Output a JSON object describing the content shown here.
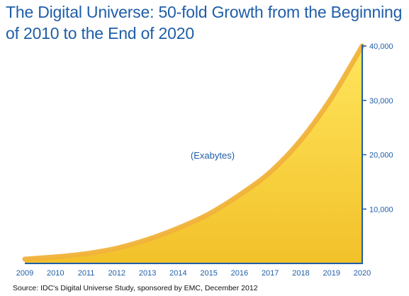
{
  "title": "The Digital Universe: 50-fold Growth from the Beginning of 2010 to the End of 2020",
  "source": "Source: IDC's Digital Universe Study, sponsored by EMC, December 2012",
  "chart_data": {
    "type": "area",
    "title": "The Digital Universe: 50-fold Growth from the Beginning of 2010 to the End of 2020",
    "xlabel": "",
    "ylabel": "",
    "annotation": "(Exabytes)",
    "x": [
      "2009",
      "2010",
      "2011",
      "2012",
      "2013",
      "2014",
      "2015",
      "2016",
      "2017",
      "2018",
      "2019",
      "2020"
    ],
    "values": [
      800,
      1200,
      1800,
      2800,
      4400,
      6500,
      9100,
      12600,
      16800,
      22700,
      30500,
      40000
    ],
    "ylim": [
      0,
      40000
    ],
    "yticks": [
      10000,
      20000,
      30000,
      40000
    ],
    "ytick_labels": [
      "10,000",
      "20,000",
      "30,000",
      "40,000"
    ],
    "y_axis_side": "right",
    "grid": false,
    "colors": {
      "fill_top": "#ffd94a",
      "fill_bottom": "#f2c12a",
      "curve": "#f0b23a",
      "axis": "#1f5ea8",
      "title": "#1f5ea8"
    }
  }
}
